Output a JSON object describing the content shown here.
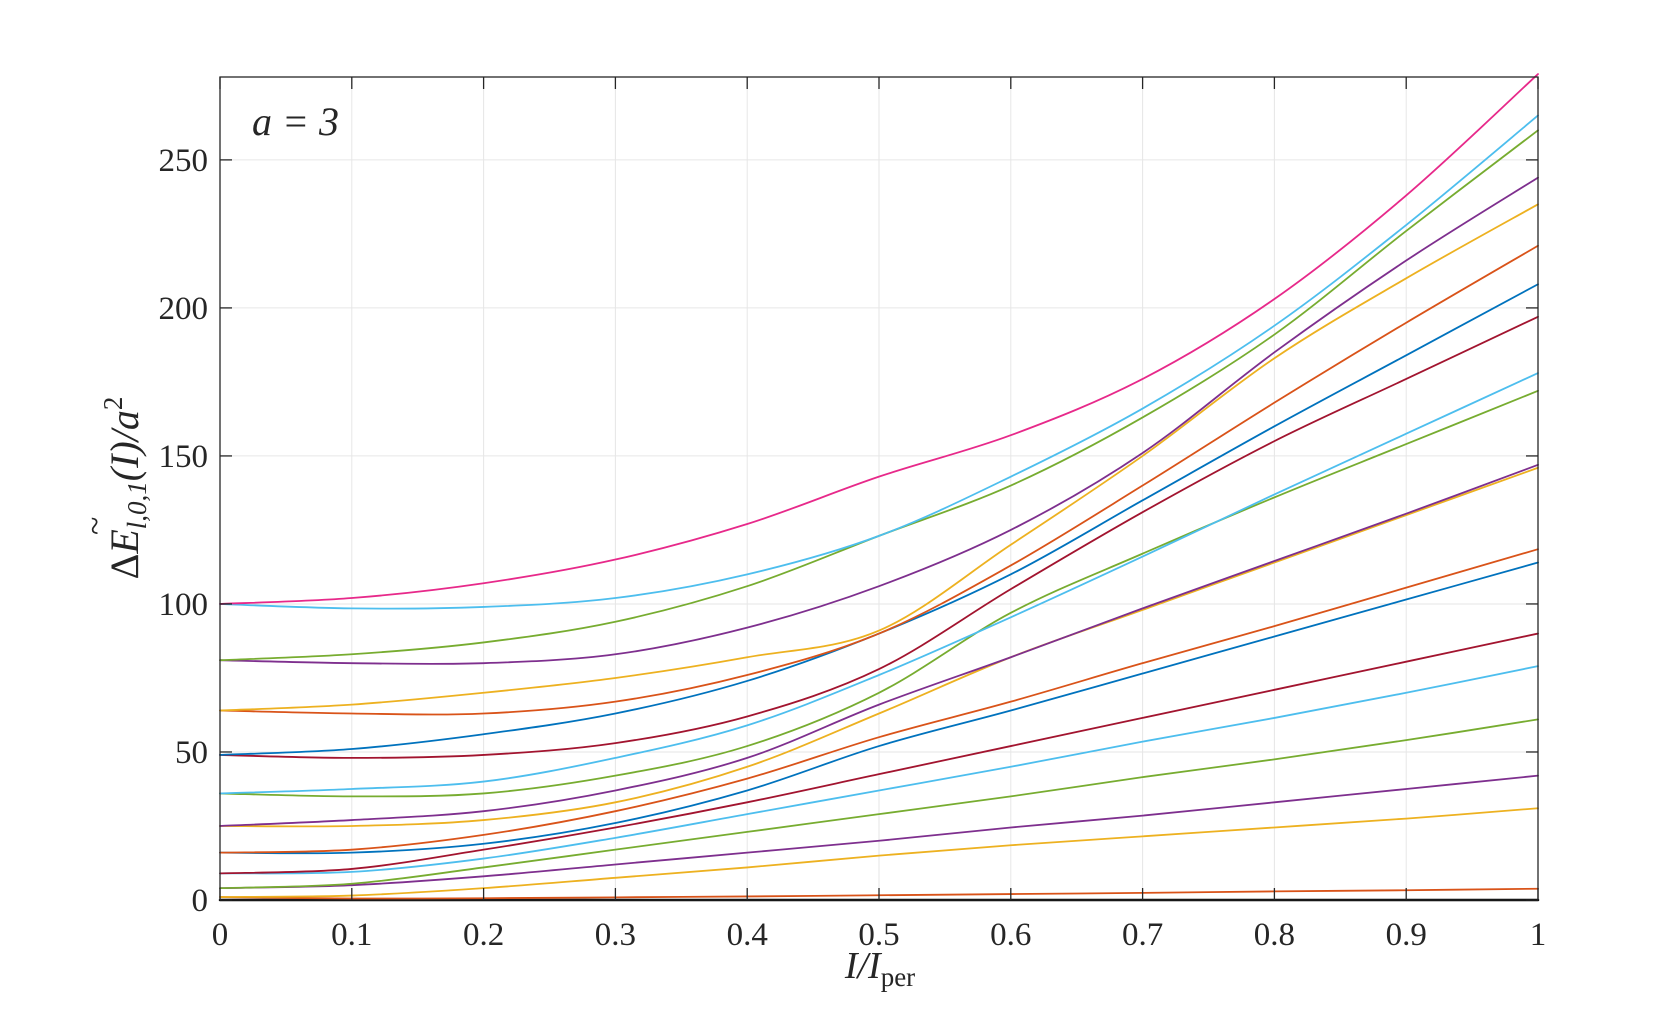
{
  "chart_data": {
    "type": "line",
    "annotation": "a = 3",
    "xlabel": {
      "main": "I/I",
      "sub": "per"
    },
    "ylabel": {
      "delta": "Δ",
      "main": "E",
      "tilde": "~",
      "sub": "l,0,1",
      "rest": "(I)/a",
      "sup": "2"
    },
    "xlim": [
      0,
      1
    ],
    "ylim": [
      0,
      278
    ],
    "xticks": [
      0,
      0.1,
      0.2,
      0.3,
      0.4,
      0.5,
      0.6,
      0.7,
      0.8,
      0.9,
      1
    ],
    "xtick_labels": [
      "0",
      "0.1",
      "0.2",
      "0.3",
      "0.4",
      "0.5",
      "0.6",
      "0.7",
      "0.8",
      "0.9",
      "1"
    ],
    "yticks": [
      0,
      50,
      100,
      150,
      200,
      250
    ],
    "ytick_labels": [
      "0",
      "50",
      "100",
      "150",
      "200",
      "250"
    ],
    "grid": true,
    "x": [
      0,
      0.1,
      0.2,
      0.3,
      0.4,
      0.5,
      0.6,
      0.7,
      0.8,
      0.9,
      1.0
    ],
    "series": [
      {
        "color": "#000000",
        "values": [
          0,
          0,
          0,
          0,
          0,
          0,
          0,
          0,
          0,
          0,
          0
        ]
      },
      {
        "color": "#D95319",
        "values": [
          1,
          0.5,
          0.6,
          0.9,
          1.2,
          1.6,
          2.0,
          2.4,
          2.9,
          3.3,
          3.8
        ]
      },
      {
        "color": "#EDB120",
        "values": [
          1,
          1.5,
          4,
          7.5,
          11,
          15,
          18.5,
          21.5,
          24.5,
          27.5,
          31
        ]
      },
      {
        "color": "#7E2F8E",
        "values": [
          4,
          5,
          8,
          12,
          16,
          20,
          24.5,
          28.5,
          33,
          37.5,
          42
        ]
      },
      {
        "color": "#77AC30",
        "values": [
          4,
          5.5,
          11,
          17,
          23,
          29,
          35,
          41.5,
          47.5,
          54,
          61
        ]
      },
      {
        "color": "#4DBEEE",
        "values": [
          9,
          9.5,
          14,
          21,
          29,
          37,
          45,
          53.5,
          61.5,
          70,
          79
        ]
      },
      {
        "color": "#A2142F",
        "values": [
          9,
          10.5,
          17,
          24.5,
          33,
          42.5,
          52,
          61.5,
          71,
          80.5,
          90
        ]
      },
      {
        "color": "#0072BD",
        "values": [
          16,
          16,
          19,
          26,
          37,
          52,
          64,
          76.5,
          89,
          101.5,
          114
        ]
      },
      {
        "color": "#D95319",
        "values": [
          16,
          17,
          22,
          30,
          41,
          55,
          67,
          80,
          92.5,
          105.5,
          118.5
        ]
      },
      {
        "color": "#EDB120",
        "values": [
          25,
          25,
          27,
          33,
          45,
          63,
          82,
          98,
          114,
          130,
          146
        ]
      },
      {
        "color": "#7E2F8E",
        "values": [
          25,
          27,
          30,
          37,
          48,
          66,
          82,
          98.5,
          114.5,
          130.5,
          147
        ]
      },
      {
        "color": "#77AC30",
        "values": [
          36,
          35,
          36,
          42,
          52,
          70,
          97,
          117,
          136,
          154,
          172
        ]
      },
      {
        "color": "#4DBEEE",
        "values": [
          36,
          37.5,
          40,
          48,
          59,
          76,
          95.5,
          116,
          137,
          157.5,
          178
        ]
      },
      {
        "color": "#A2142F",
        "values": [
          49,
          48,
          49,
          53,
          62,
          78,
          105,
          131,
          155,
          176,
          197
        ]
      },
      {
        "color": "#0072BD",
        "values": [
          49,
          51,
          56,
          63,
          74,
          90,
          110,
          135,
          160,
          184,
          208
        ]
      },
      {
        "color": "#D95319",
        "values": [
          64,
          63,
          63,
          67,
          76,
          90,
          113,
          140,
          168,
          195,
          221
        ]
      },
      {
        "color": "#EDB120",
        "values": [
          64,
          66,
          70,
          75,
          82,
          91,
          120,
          150,
          183,
          210,
          235
        ]
      },
      {
        "color": "#7E2F8E",
        "values": [
          81,
          80,
          80,
          83,
          92,
          106,
          125,
          151,
          185,
          216,
          244
        ]
      },
      {
        "color": "#77AC30",
        "values": [
          81,
          83,
          87,
          94,
          106,
          123,
          140,
          163,
          191,
          226,
          260
        ]
      },
      {
        "color": "#4DBEEE",
        "values": [
          100,
          98.5,
          99,
          102,
          110,
          123,
          143,
          166,
          194,
          228,
          265
        ]
      },
      {
        "color": "#E7298A",
        "values": [
          100,
          102,
          107,
          115,
          127,
          143,
          157,
          176,
          203,
          238,
          279
        ]
      }
    ]
  }
}
